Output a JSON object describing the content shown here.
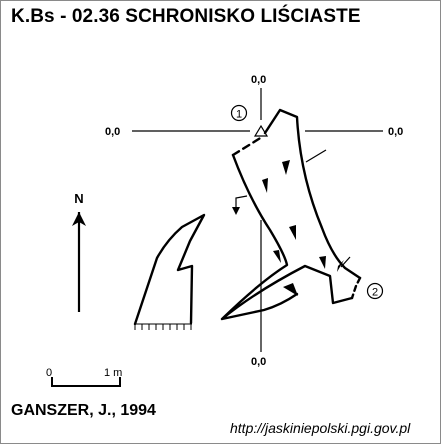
{
  "title": "K.Bs - 02.36  SCHRONISKO LIŚCIASTE",
  "author": "GANSZER, J., 1994",
  "source_url": "http://jaskiniepolski.pgi.gov.pl",
  "north_label": "N",
  "scale": {
    "start": "0",
    "end": "1 m"
  },
  "stations": [
    {
      "id": "1",
      "label": "1",
      "offsets": {
        "top": "0,0",
        "left": "0,0",
        "right": "0,0",
        "bottom": "0,0"
      }
    },
    {
      "id": "2",
      "label": "2"
    }
  ]
}
